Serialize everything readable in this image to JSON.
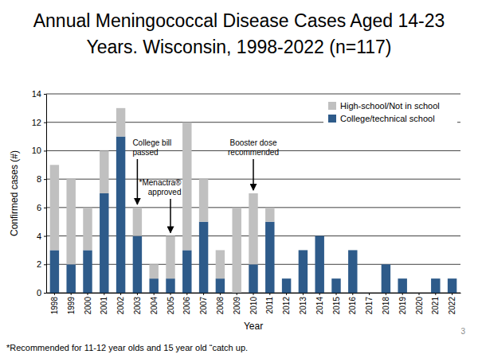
{
  "chart_data": {
    "type": "bar",
    "stacked": true,
    "title": [
      "Annual Meningococcal Disease Cases Aged 14-23",
      "Years.  Wisconsin, 1998-2022 (n=117)"
    ],
    "x_label": "Year",
    "y_label": "Confirmed cases (#)",
    "categories": [
      "1998",
      "1999",
      "2000",
      "2001",
      "2002",
      "2003",
      "2004",
      "2005",
      "2006",
      "2007",
      "2008",
      "2009",
      "2010",
      "2011",
      "2012",
      "2013",
      "2014",
      "2015",
      "2016",
      "2017",
      "2018",
      "2019",
      "2020",
      "2021",
      "2022"
    ],
    "series": [
      {
        "name": "College/technical school",
        "color": "#2e5b8a",
        "values": [
          3,
          2,
          3,
          7,
          11,
          4,
          1,
          1,
          3,
          5,
          1,
          0,
          2,
          5,
          1,
          3,
          4,
          1,
          3,
          0,
          2,
          1,
          0,
          1,
          1
        ]
      },
      {
        "name": "High-school/Not in school",
        "color": "#c0c0c0",
        "values": [
          6,
          6,
          3,
          3,
          2,
          2,
          1,
          3,
          9,
          3,
          2,
          6,
          5,
          1,
          0,
          0,
          0,
          0,
          0,
          0,
          0,
          0,
          0,
          0,
          0
        ]
      }
    ],
    "ylim": [
      0,
      14
    ],
    "yticks": [
      0,
      2,
      4,
      6,
      8,
      10,
      12,
      14
    ],
    "grid": true,
    "legend": "upper right",
    "annotations": [
      {
        "text": [
          "College bill",
          "passed"
        ],
        "category": "2003"
      },
      {
        "text": [
          "*Menactra®",
          "approved"
        ],
        "category": "2005"
      },
      {
        "text": [
          "Booster dose",
          "recommended"
        ],
        "category": "2010"
      }
    ],
    "footnote": "*Recommended for 11-12 year olds and 15 year old “catch up.",
    "page_number": "3"
  }
}
